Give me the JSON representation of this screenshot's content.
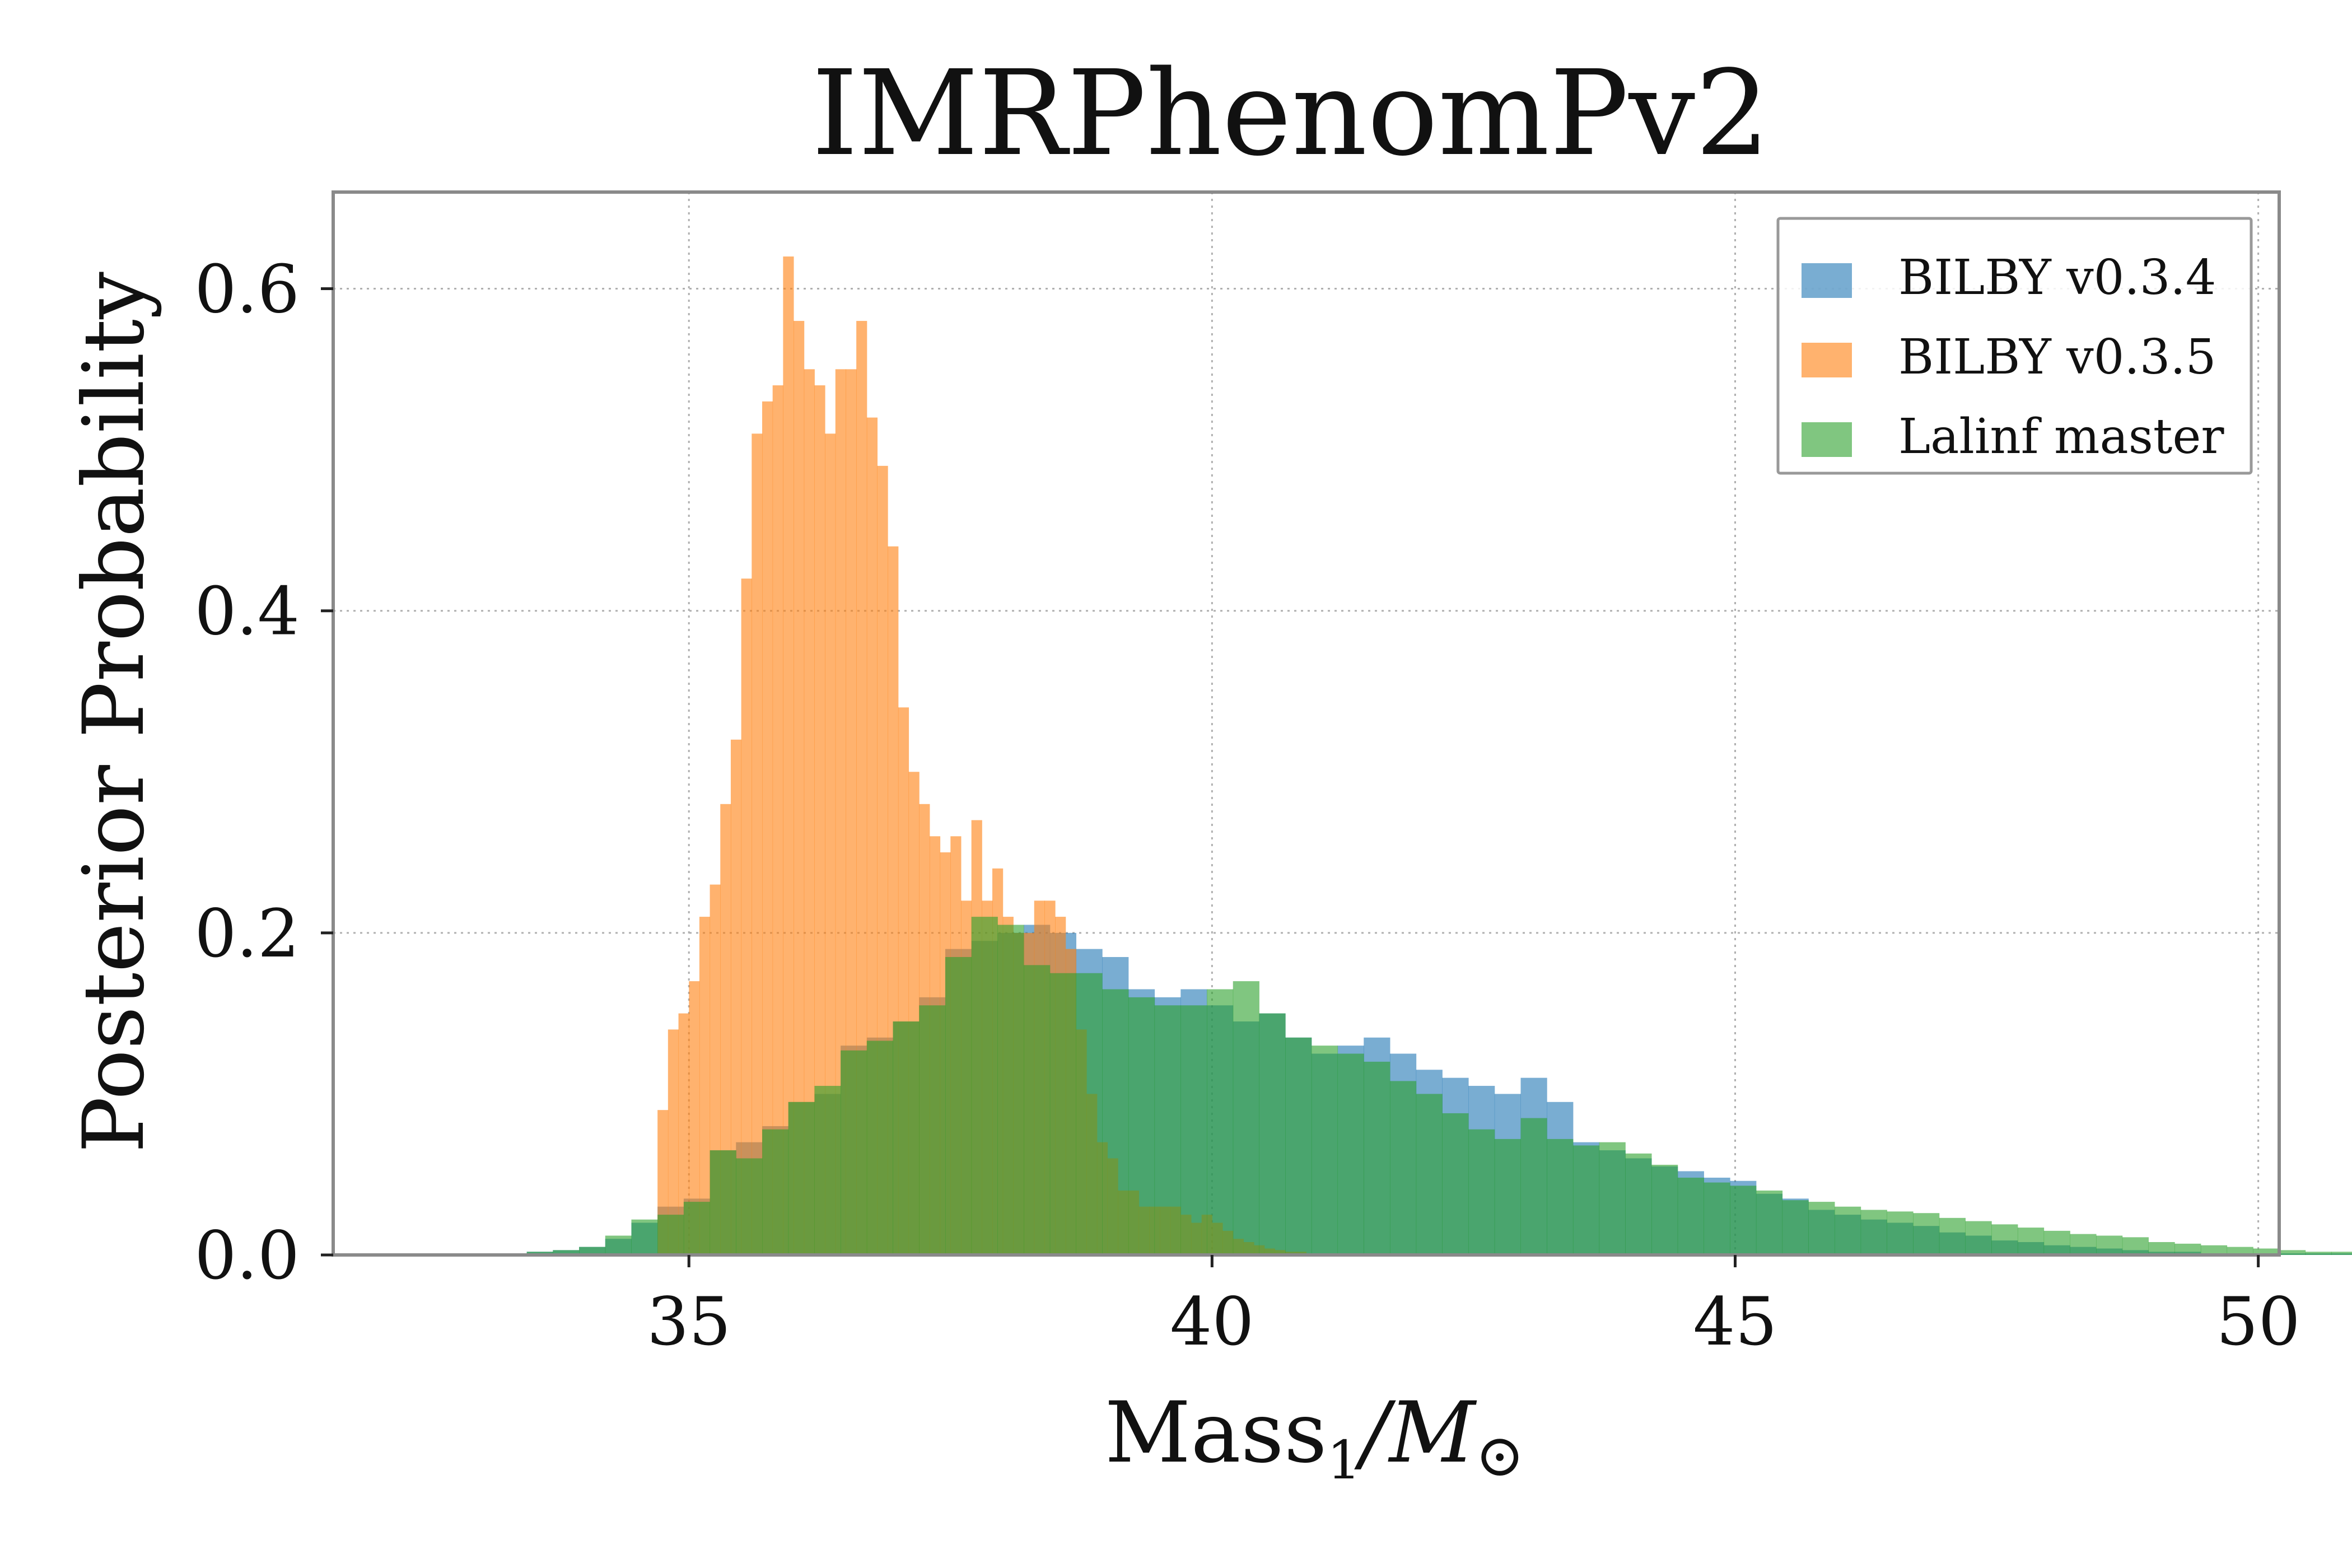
{
  "chart_data": {
    "type": "bar",
    "title": "IMRPhenomPv2",
    "xlabel": "Mass",
    "xlabel_subscript": "1",
    "xlabel_unit": "/M",
    "xlabel_symbol": "⊙",
    "ylabel": "Posterior Probability",
    "xlim": [
      31.6,
      50.2
    ],
    "ylim": [
      0,
      0.66
    ],
    "xticks": [
      {
        "value": 35,
        "label": "35"
      },
      {
        "value": 40,
        "label": "40"
      },
      {
        "value": 45,
        "label": "45"
      },
      {
        "value": 50,
        "label": "50"
      }
    ],
    "yticks": [
      {
        "value": 0.0,
        "label": "0.0"
      },
      {
        "value": 0.2,
        "label": "0.2"
      },
      {
        "value": 0.4,
        "label": "0.4"
      },
      {
        "value": 0.6,
        "label": "0.6"
      }
    ],
    "grid": true,
    "legend_position": "top-right",
    "series": [
      {
        "name": "BILBY v0.3.4",
        "color": "#1f77b4",
        "opacity": 0.6,
        "bin_start": 33.2,
        "bin_width": 0.25,
        "values": [
          0.001,
          0.002,
          0.003,
          0.005,
          0.01,
          0.02,
          0.03,
          0.035,
          0.065,
          0.07,
          0.08,
          0.095,
          0.1,
          0.13,
          0.135,
          0.145,
          0.16,
          0.19,
          0.195,
          0.2,
          0.205,
          0.2,
          0.19,
          0.185,
          0.165,
          0.16,
          0.165,
          0.155,
          0.145,
          0.15,
          0.135,
          0.125,
          0.13,
          0.135,
          0.125,
          0.115,
          0.11,
          0.105,
          0.1,
          0.11,
          0.095,
          0.07,
          0.065,
          0.06,
          0.055,
          0.052,
          0.048,
          0.046,
          0.038,
          0.035,
          0.028,
          0.025,
          0.022,
          0.02,
          0.018,
          0.014,
          0.012,
          0.009,
          0.008,
          0.006,
          0.005,
          0.004,
          0.003,
          0.002,
          0.002,
          0.001,
          0.001,
          0.001,
          0.001,
          0.001,
          0.001,
          0.001,
          0.001,
          0.001,
          0.001,
          0.002,
          0.001,
          0.001,
          0.001,
          0.001,
          0.001,
          0.001,
          0.001,
          0.001,
          0.001,
          0.001,
          0.001,
          0.001,
          0.001,
          0.002,
          0.001,
          0.001
        ]
      },
      {
        "name": "BILBY v0.3.5",
        "color": "#ff7f0e",
        "opacity": 0.6,
        "bin_start": 34.7,
        "bin_width": 0.1,
        "values": [
          0.09,
          0.14,
          0.15,
          0.17,
          0.21,
          0.23,
          0.28,
          0.32,
          0.42,
          0.51,
          0.53,
          0.54,
          0.62,
          0.58,
          0.55,
          0.54,
          0.51,
          0.55,
          0.55,
          0.58,
          0.52,
          0.49,
          0.44,
          0.34,
          0.3,
          0.28,
          0.26,
          0.25,
          0.26,
          0.22,
          0.27,
          0.22,
          0.24,
          0.21,
          0.2,
          0.2,
          0.22,
          0.22,
          0.21,
          0.19,
          0.14,
          0.1,
          0.07,
          0.06,
          0.04,
          0.04,
          0.03,
          0.03,
          0.03,
          0.03,
          0.025,
          0.02,
          0.025,
          0.02,
          0.015,
          0.01,
          0.008,
          0.006,
          0.004,
          0.003,
          0.002,
          0.002,
          0.001
        ]
      },
      {
        "name": "Lalinf master",
        "color": "#2ca02c",
        "opacity": 0.6,
        "bin_start": 33.2,
        "bin_width": 0.25,
        "values": [
          0.001,
          0.002,
          0.003,
          0.005,
          0.012,
          0.022,
          0.025,
          0.033,
          0.065,
          0.06,
          0.078,
          0.095,
          0.105,
          0.127,
          0.133,
          0.145,
          0.155,
          0.185,
          0.21,
          0.205,
          0.18,
          0.175,
          0.175,
          0.165,
          0.16,
          0.155,
          0.155,
          0.165,
          0.17,
          0.15,
          0.135,
          0.13,
          0.125,
          0.12,
          0.108,
          0.1,
          0.088,
          0.078,
          0.072,
          0.085,
          0.072,
          0.068,
          0.07,
          0.063,
          0.056,
          0.048,
          0.045,
          0.043,
          0.04,
          0.034,
          0.033,
          0.03,
          0.028,
          0.027,
          0.026,
          0.023,
          0.021,
          0.019,
          0.017,
          0.015,
          0.013,
          0.012,
          0.011,
          0.008,
          0.007,
          0.006,
          0.005,
          0.004,
          0.003,
          0.002,
          0.002,
          0.001
        ]
      }
    ]
  }
}
